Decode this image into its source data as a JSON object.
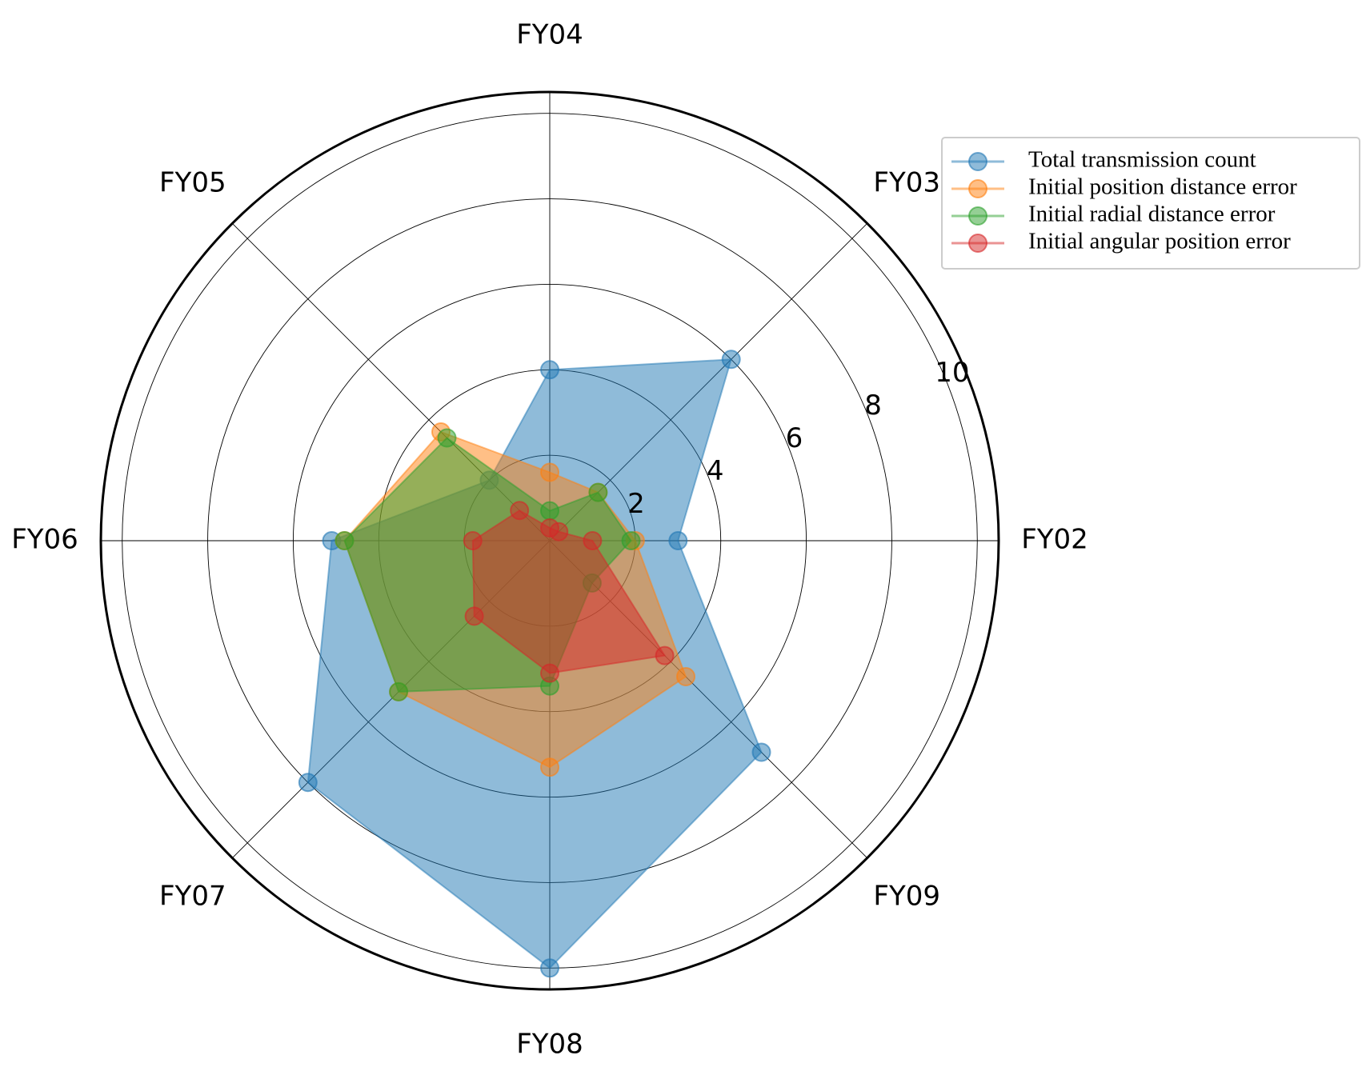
{
  "chart_data": {
    "type": "radar",
    "categories": [
      "FY02",
      "FY03",
      "FY04",
      "FY05",
      "FY06",
      "FY07",
      "FY08",
      "FY09"
    ],
    "rlim": [
      0,
      10.5
    ],
    "r_ticks": [
      "2",
      "4",
      "6",
      "8",
      "10"
    ],
    "grid": true,
    "legend_position": "top-right",
    "series": [
      {
        "name": "Total transmission count",
        "color": "#1f77b4",
        "values": [
          3.0,
          6.0,
          4.0,
          2.0,
          5.1,
          8.0,
          10.0,
          7.0
        ]
      },
      {
        "name": "Initial position distance error",
        "color": "#ff7f0e",
        "values": [
          2.0,
          1.6,
          1.6,
          3.6,
          4.8,
          5.0,
          5.3,
          4.5
        ]
      },
      {
        "name": "Initial radial distance error",
        "color": "#2ca02c",
        "values": [
          1.9,
          1.6,
          0.7,
          3.4,
          4.8,
          5.0,
          3.4,
          1.4
        ]
      },
      {
        "name": "Initial angular position error",
        "color": "#d62728",
        "values": [
          1.0,
          0.3,
          0.3,
          1.0,
          1.8,
          2.5,
          3.1,
          3.8
        ]
      }
    ]
  }
}
